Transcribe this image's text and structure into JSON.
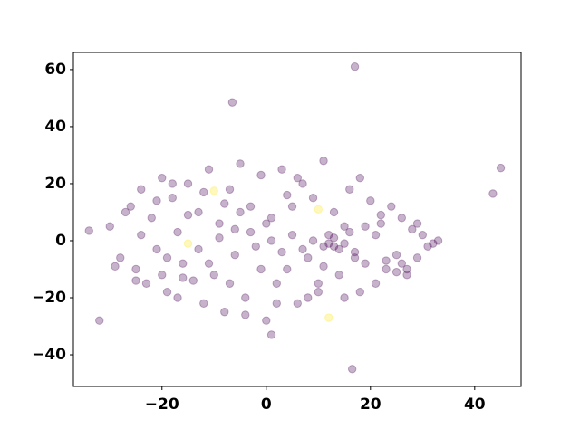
{
  "chart_data": {
    "type": "scatter",
    "xlim": [
      -37,
      48.9
    ],
    "ylim": [
      -51.1,
      66
    ],
    "xticks": [
      {
        "value": -20,
        "label": "−20"
      },
      0,
      20,
      40
    ],
    "yticks": [
      {
        "value": -40,
        "label": "−40"
      },
      {
        "value": -20,
        "label": "−20"
      },
      0,
      20,
      40,
      60
    ],
    "opacity": 0.3,
    "series": [
      {
        "color": "#440154",
        "x": [
          -30,
          -28,
          -26,
          -25,
          -24,
          -23,
          -22,
          -21,
          -20,
          -19,
          -18,
          -17,
          -16,
          -15,
          -14,
          -13,
          -12,
          -11,
          -10,
          -9,
          -8,
          -7,
          -6,
          -5,
          -4,
          -3,
          -2,
          -1,
          0,
          1,
          2,
          3,
          4,
          5,
          6,
          7,
          8,
          9,
          10,
          11,
          12,
          13,
          14,
          15,
          16,
          17,
          18,
          19,
          20,
          21,
          22,
          23,
          24,
          25,
          26,
          27,
          28,
          29,
          30,
          31,
          -29,
          -27,
          -24,
          -21,
          -19,
          -17,
          -15,
          -13,
          -11,
          -9,
          -7,
          -5,
          -3,
          -1,
          1,
          3,
          5,
          7,
          9,
          11,
          13,
          15,
          17,
          19,
          21,
          23,
          25,
          27,
          29,
          32,
          -20,
          -16,
          -12,
          -8,
          -4,
          0,
          4,
          8,
          10,
          12,
          14,
          16,
          18,
          22,
          26,
          -25,
          -18,
          -6,
          2,
          6,
          11,
          13,
          15,
          17,
          -6.5,
          45,
          43.5,
          16.5,
          -32,
          1,
          -34,
          33
        ],
        "values": [
          5,
          -6,
          12,
          -10,
          18,
          -15,
          8,
          -3,
          22,
          -18,
          15,
          3,
          -8,
          20,
          -14,
          10,
          -22,
          25,
          -12,
          6,
          -25,
          18,
          -5,
          27,
          -20,
          12,
          -2,
          23,
          -28,
          8,
          -15,
          25,
          -10,
          2,
          -22,
          20,
          -6,
          15,
          -18,
          28,
          -1,
          10,
          -12,
          -20,
          18,
          -4,
          22,
          -8,
          14,
          -15,
          6,
          -10,
          12,
          -5,
          8,
          -12,
          4,
          -6,
          2,
          -2,
          -9,
          10,
          2,
          14,
          -6,
          -20,
          9,
          -3,
          -8,
          1,
          -15,
          10,
          3,
          -10,
          0,
          -4,
          12,
          -3,
          0,
          -2,
          1,
          -1,
          -6,
          5,
          2,
          -7,
          -11,
          -10,
          6,
          -1,
          -12,
          -13,
          17,
          13,
          -26,
          6,
          16,
          -20,
          -15,
          2,
          -3,
          3,
          -18,
          9,
          -8,
          -14,
          20,
          4,
          -22,
          22,
          -9,
          -2,
          5,
          61,
          48.5,
          25.5,
          16.5,
          -45,
          -28,
          -33,
          3.5,
          0
        ]
      },
      {
        "color": "#fde725",
        "x": [
          -15,
          10,
          12,
          -10
        ],
        "values": [
          -1,
          11,
          -27,
          17.5
        ]
      }
    ]
  }
}
